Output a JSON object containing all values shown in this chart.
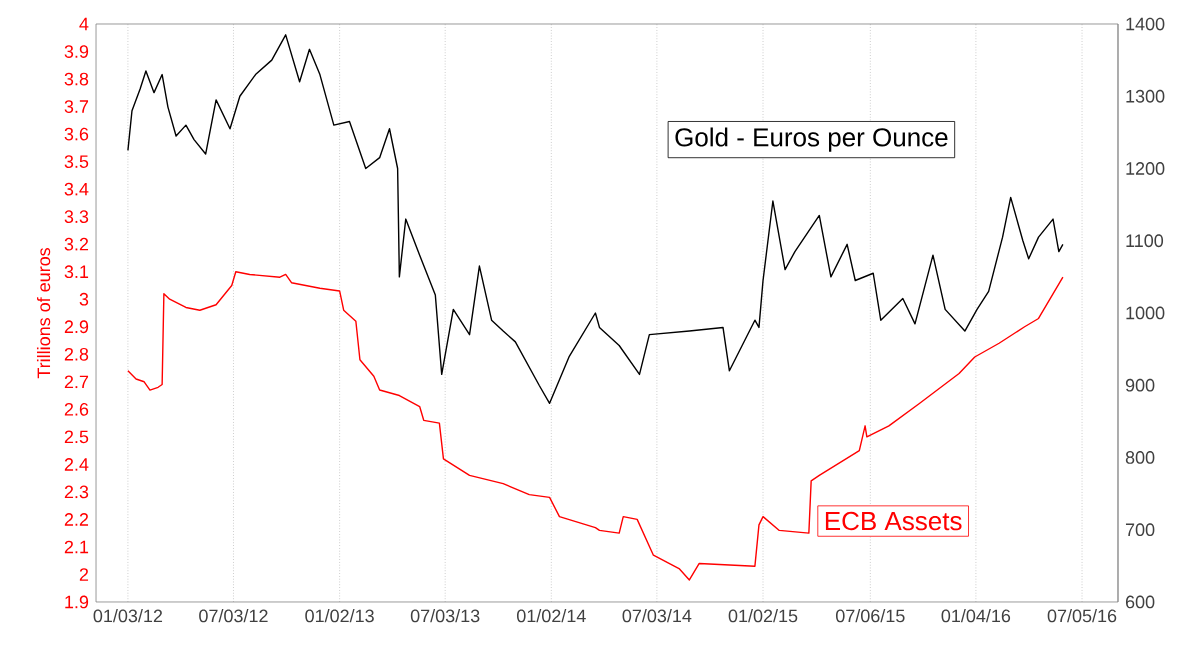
{
  "chart_data": {
    "type": "line",
    "ylabel": "Trillions of euros",
    "grid": "x",
    "xlim": [
      "2011-11-09",
      "2016-09-05"
    ],
    "xticks": [
      {
        "value": "2012-01-03",
        "label": "01/03/12"
      },
      {
        "value": "2012-07-03",
        "label": "07/03/12"
      },
      {
        "value": "2013-01-02",
        "label": "01/02/13"
      },
      {
        "value": "2013-07-03",
        "label": "07/03/13"
      },
      {
        "value": "2014-01-02",
        "label": "01/02/14"
      },
      {
        "value": "2014-07-03",
        "label": "07/03/14"
      },
      {
        "value": "2015-01-02",
        "label": "01/02/15"
      },
      {
        "value": "2015-07-06",
        "label": "07/06/15"
      },
      {
        "value": "2016-01-04",
        "label": "01/04/16"
      },
      {
        "value": "2016-07-05",
        "label": "07/05/16"
      }
    ],
    "ylim": [
      1.9,
      4
    ],
    "yticks": [
      1.9,
      2,
      2.1,
      2.2,
      2.3,
      2.4,
      2.5,
      2.6,
      2.7,
      2.8,
      2.9,
      3,
      3.1,
      3.2,
      3.3,
      3.4,
      3.5,
      3.6,
      3.7,
      3.8,
      3.9,
      4
    ],
    "y2lim": [
      600,
      1400
    ],
    "y2ticks": [
      600,
      700,
      800,
      900,
      1000,
      1100,
      1200,
      1300,
      1400
    ],
    "series": [
      {
        "name": "ECB Assets",
        "color": "#ff0000",
        "axis": "y",
        "x": [
          "2012-01-03",
          "2012-01-17",
          "2012-01-31",
          "2012-02-10",
          "2012-02-24",
          "2012-03-02",
          "2012-03-05",
          "2012-03-15",
          "2012-04-12",
          "2012-05-06",
          "2012-06-03",
          "2012-06-30",
          "2012-07-07",
          "2012-07-31",
          "2012-09-21",
          "2012-10-01",
          "2012-10-11",
          "2012-11-29",
          "2013-01-02",
          "2013-01-09",
          "2013-01-30",
          "2013-02-06",
          "2013-03-02",
          "2013-03-12",
          "2013-04-15",
          "2013-05-20",
          "2013-05-27",
          "2013-06-23",
          "2013-06-30",
          "2013-08-14",
          "2013-10-11",
          "2013-11-25",
          "2013-12-30",
          "2014-01-16",
          "2014-03-19",
          "2014-03-26",
          "2014-04-29",
          "2014-05-06",
          "2014-05-30",
          "2014-06-27",
          "2014-08-11",
          "2014-08-28",
          "2014-09-14",
          "2014-12-19",
          "2014-12-26",
          "2015-01-02",
          "2015-01-30",
          "2015-03-22",
          "2015-03-26",
          "2015-04-09",
          "2015-06-17",
          "2015-06-27",
          "2015-06-30",
          "2015-08-07",
          "2015-09-28",
          "2015-12-06",
          "2016-01-02",
          "2016-02-13",
          "2016-03-28",
          "2016-04-21",
          "2016-06-02"
        ],
        "values": [
          2.74,
          2.71,
          2.7,
          2.67,
          2.68,
          2.69,
          3.02,
          3.0,
          2.97,
          2.96,
          2.98,
          3.05,
          3.1,
          3.09,
          3.08,
          3.09,
          3.06,
          3.04,
          3.03,
          2.96,
          2.92,
          2.78,
          2.72,
          2.67,
          2.65,
          2.61,
          2.56,
          2.55,
          2.42,
          2.36,
          2.33,
          2.29,
          2.28,
          2.21,
          2.17,
          2.16,
          2.15,
          2.21,
          2.2,
          2.07,
          2.02,
          1.98,
          2.04,
          2.03,
          2.18,
          2.21,
          2.16,
          2.15,
          2.34,
          2.36,
          2.45,
          2.54,
          2.5,
          2.54,
          2.62,
          2.73,
          2.79,
          2.84,
          2.9,
          2.93,
          3.08
        ]
      },
      {
        "name": "Gold - Euros per Ounce",
        "color": "#000000",
        "axis": "y2",
        "x": [
          "2012-01-03",
          "2012-01-10",
          "2012-01-24",
          "2012-02-03",
          "2012-02-17",
          "2012-03-02",
          "2012-03-12",
          "2012-03-26",
          "2012-04-12",
          "2012-04-26",
          "2012-05-16",
          "2012-06-03",
          "2012-06-27",
          "2012-07-14",
          "2012-08-10",
          "2012-09-07",
          "2012-10-01",
          "2012-10-25",
          "2012-11-11",
          "2012-11-29",
          "2012-12-23",
          "2013-01-19",
          "2013-02-16",
          "2013-03-12",
          "2013-03-29",
          "2013-04-12",
          "2013-04-15",
          "2013-04-26",
          "2013-05-20",
          "2013-06-16",
          "2013-06-27",
          "2013-07-17",
          "2013-08-14",
          "2013-08-31",
          "2013-09-21",
          "2013-10-11",
          "2013-11-01",
          "2013-12-12",
          "2013-12-30",
          "2014-02-02",
          "2014-03-19",
          "2014-03-26",
          "2014-04-29",
          "2014-06-03",
          "2014-06-20",
          "2014-08-28",
          "2014-10-25",
          "2014-11-05",
          "2014-12-19",
          "2014-12-26",
          "2015-01-02",
          "2015-01-19",
          "2015-02-09",
          "2015-02-26",
          "2015-04-09",
          "2015-04-29",
          "2015-05-27",
          "2015-06-10",
          "2015-07-11",
          "2015-07-24",
          "2015-08-31",
          "2015-09-21",
          "2015-10-22",
          "2015-11-12",
          "2015-12-16",
          "2016-01-06",
          "2016-01-26",
          "2016-02-19",
          "2016-03-04",
          "2016-03-25",
          "2016-04-04",
          "2016-04-21",
          "2016-05-16",
          "2016-05-26",
          "2016-06-02"
        ],
        "values": [
          1225,
          1280,
          1310,
          1335,
          1305,
          1330,
          1285,
          1245,
          1260,
          1240,
          1220,
          1295,
          1255,
          1300,
          1330,
          1350,
          1385,
          1320,
          1365,
          1330,
          1260,
          1265,
          1200,
          1215,
          1255,
          1200,
          1050,
          1130,
          1080,
          1025,
          915,
          1005,
          970,
          1065,
          990,
          975,
          960,
          900,
          875,
          940,
          1000,
          980,
          955,
          915,
          970,
          975,
          980,
          920,
          990,
          980,
          1045,
          1155,
          1060,
          1085,
          1135,
          1050,
          1095,
          1045,
          1055,
          990,
          1020,
          985,
          1080,
          1005,
          975,
          1005,
          1030,
          1105,
          1160,
          1100,
          1075,
          1105,
          1130,
          1085,
          1095
        ]
      }
    ]
  }
}
